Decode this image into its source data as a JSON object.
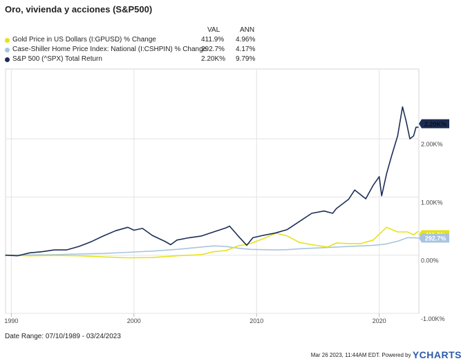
{
  "header": {
    "title": "Oro, vivienda y acciones (S&P500)"
  },
  "legend": {
    "col_val": "VAL",
    "col_ann": "ANN",
    "items": [
      {
        "name": "Gold Price in US Dollars (I:GPUSD) % Change",
        "val": "411.9%",
        "ann": "4.96%",
        "color": "#e6e21a"
      },
      {
        "name": "Case-Shiller Home Price Index: National (I:CSHPIN) % Change",
        "val": "292.7%",
        "ann": "4.17%",
        "color": "#a8c4e0"
      },
      {
        "name": "S&P 500 (^SPX) Total Return",
        "val": "2.20K%",
        "ann": "9.79%",
        "color": "#1b2d55"
      }
    ]
  },
  "chart_data": {
    "type": "line",
    "x_range": [
      "1989-07-10",
      "2023-03-24"
    ],
    "x_ticks": [
      "1990",
      "2000",
      "2010",
      "2020"
    ],
    "y_ticks": [
      "-1.00K%",
      "0.00%",
      "1.00K%",
      "2.00K%"
    ],
    "ylim": [
      -1000,
      3200
    ],
    "series": [
      {
        "name": "S&P 500 (^SPX) Total Return",
        "color": "#1b2d55",
        "end_label": "2.20K%",
        "points": [
          [
            1989.5,
            0
          ],
          [
            1990.5,
            -10
          ],
          [
            1991.5,
            40
          ],
          [
            1992.5,
            60
          ],
          [
            1993.5,
            90
          ],
          [
            1994.5,
            90
          ],
          [
            1995.5,
            150
          ],
          [
            1996.5,
            230
          ],
          [
            1997.5,
            330
          ],
          [
            1998.5,
            420
          ],
          [
            1999.5,
            480
          ],
          [
            2000.0,
            430
          ],
          [
            2000.7,
            460
          ],
          [
            2001.5,
            340
          ],
          [
            2002.5,
            240
          ],
          [
            2003.0,
            180
          ],
          [
            2003.5,
            260
          ],
          [
            2004.5,
            300
          ],
          [
            2005.5,
            330
          ],
          [
            2006.5,
            400
          ],
          [
            2007.5,
            470
          ],
          [
            2007.8,
            500
          ],
          [
            2008.5,
            330
          ],
          [
            2009.2,
            170
          ],
          [
            2009.7,
            300
          ],
          [
            2010.5,
            340
          ],
          [
            2011.5,
            380
          ],
          [
            2012.5,
            440
          ],
          [
            2013.5,
            580
          ],
          [
            2014.5,
            720
          ],
          [
            2015.5,
            760
          ],
          [
            2016.2,
            720
          ],
          [
            2016.5,
            800
          ],
          [
            2017.5,
            960
          ],
          [
            2018.0,
            1120
          ],
          [
            2018.9,
            970
          ],
          [
            2019.5,
            1200
          ],
          [
            2020.0,
            1350
          ],
          [
            2020.2,
            1020
          ],
          [
            2020.6,
            1400
          ],
          [
            2021.0,
            1700
          ],
          [
            2021.5,
            2050
          ],
          [
            2021.9,
            2550
          ],
          [
            2022.2,
            2300
          ],
          [
            2022.5,
            2000
          ],
          [
            2022.8,
            2050
          ],
          [
            2023.0,
            2200
          ],
          [
            2023.2,
            2200
          ]
        ]
      },
      {
        "name": "Gold Price in US Dollars (I:GPUSD) % Change",
        "color": "#e6e21a",
        "end_label": "411.9%",
        "points": [
          [
            1989.5,
            0
          ],
          [
            1991.5,
            -10
          ],
          [
            1993.5,
            -5
          ],
          [
            1995.5,
            -10
          ],
          [
            1997.5,
            -30
          ],
          [
            1999.5,
            -45
          ],
          [
            2001.5,
            -40
          ],
          [
            2003.5,
            -10
          ],
          [
            2005.5,
            10
          ],
          [
            2006.5,
            60
          ],
          [
            2007.5,
            80
          ],
          [
            2008.5,
            160
          ],
          [
            2009.5,
            200
          ],
          [
            2010.5,
            280
          ],
          [
            2011.6,
            380
          ],
          [
            2012.5,
            330
          ],
          [
            2013.5,
            220
          ],
          [
            2014.5,
            180
          ],
          [
            2015.8,
            140
          ],
          [
            2016.5,
            210
          ],
          [
            2017.5,
            200
          ],
          [
            2018.5,
            200
          ],
          [
            2019.5,
            260
          ],
          [
            2020.6,
            480
          ],
          [
            2021.5,
            400
          ],
          [
            2022.3,
            400
          ],
          [
            2022.8,
            350
          ],
          [
            2023.2,
            412
          ]
        ]
      },
      {
        "name": "Case-Shiller Home Price Index: National (I:CSHPIN) % Change",
        "color": "#a8c4e0",
        "end_label": "292.7%",
        "points": [
          [
            1989.5,
            0
          ],
          [
            1991.5,
            5
          ],
          [
            1993.5,
            10
          ],
          [
            1995.5,
            20
          ],
          [
            1997.5,
            30
          ],
          [
            1999.5,
            50
          ],
          [
            2001.5,
            70
          ],
          [
            2003.5,
            100
          ],
          [
            2005.5,
            140
          ],
          [
            2006.5,
            160
          ],
          [
            2007.5,
            150
          ],
          [
            2008.5,
            120
          ],
          [
            2009.5,
            100
          ],
          [
            2011.5,
            90
          ],
          [
            2012.5,
            95
          ],
          [
            2013.5,
            110
          ],
          [
            2015.5,
            130
          ],
          [
            2017.5,
            150
          ],
          [
            2019.5,
            170
          ],
          [
            2020.5,
            190
          ],
          [
            2021.5,
            240
          ],
          [
            2022.3,
            300
          ],
          [
            2022.8,
            300
          ],
          [
            2023.2,
            293
          ]
        ]
      }
    ]
  },
  "footer": {
    "date_range": "Date Range: 07/10/1989 - 03/24/2023",
    "timestamp": "Mar 26 2023, 11:44AM EDT.",
    "powered_by": "Powered by",
    "brand": "YCHARTS"
  }
}
